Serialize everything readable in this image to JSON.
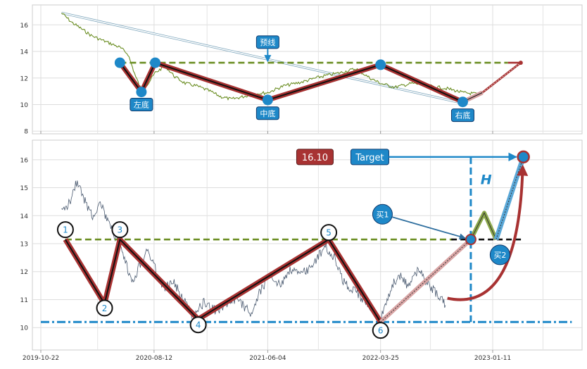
{
  "chart_data": [
    {
      "type": "line",
      "panel": "top",
      "ylim": [
        7.8,
        17.5
      ],
      "yticks": [
        8,
        10,
        12,
        14,
        16
      ],
      "grid": true,
      "price_path": [
        [
          "2019-12-15",
          16.9
        ],
        [
          "2020-01-10",
          16.2
        ],
        [
          "2020-02-05",
          15.7
        ],
        [
          "2020-03-01",
          15.2
        ],
        [
          "2020-03-25",
          14.9
        ],
        [
          "2020-04-20",
          14.6
        ],
        [
          "2020-05-15",
          14.3
        ],
        [
          "2020-06-05",
          13.8
        ],
        [
          "2020-06-25",
          12.1
        ],
        [
          "2020-07-10",
          11.1
        ],
        [
          "2020-07-28",
          11.6
        ],
        [
          "2020-08-15",
          12.4
        ],
        [
          "2020-09-10",
          12.9
        ],
        [
          "2020-10-05",
          12.1
        ],
        [
          "2020-11-01",
          11.6
        ],
        [
          "2020-12-01",
          11.4
        ],
        [
          "2021-01-05",
          11.0
        ],
        [
          "2021-02-01",
          10.6
        ],
        [
          "2021-03-01",
          10.4
        ],
        [
          "2021-04-01",
          10.6
        ],
        [
          "2021-05-01",
          10.8
        ],
        [
          "2021-06-04",
          10.9
        ],
        [
          "2021-07-15",
          11.4
        ],
        [
          "2021-09-01",
          11.7
        ],
        [
          "2021-10-20",
          12.1
        ],
        [
          "2021-12-10",
          12.4
        ],
        [
          "2022-01-20",
          12.7
        ],
        [
          "2022-02-25",
          12.0
        ],
        [
          "2022-03-25",
          11.6
        ],
        [
          "2022-05-01",
          11.3
        ],
        [
          "2022-06-15",
          11.6
        ],
        [
          "2022-08-01",
          11.4
        ],
        [
          "2022-09-15",
          11.2
        ],
        [
          "2022-10-25",
          10.9
        ],
        [
          "2022-12-01",
          10.8
        ]
      ],
      "pattern_lines": [
        {
          "name": "neckline",
          "style": "dashed",
          "color": "#6b8e23",
          "points": [
            [
              "2020-05-15",
              13.15
            ],
            [
              "2023-02-20",
              13.15
            ]
          ]
        },
        {
          "name": "neckline-ext",
          "style": "solid",
          "color": "#a83232",
          "points": [
            [
              "2023-02-20",
              13.15
            ],
            [
              "2023-03-25",
              13.15
            ]
          ]
        },
        {
          "name": "trend",
          "style": "outline",
          "color": "#a7c4d4",
          "points": [
            [
              "2019-12-15",
              16.9
            ],
            [
              "2022-10-25",
              10.1
            ]
          ]
        },
        {
          "name": "w-pattern",
          "style": "solid",
          "color": "#a83232",
          "points": [
            [
              "2020-05-15",
              13.15
            ],
            [
              "2020-07-10",
              10.95
            ],
            [
              "2020-08-15",
              13.15
            ],
            [
              "2021-06-04",
              10.35
            ],
            [
              "2022-03-25",
              13.0
            ],
            [
              "2022-10-25",
              10.2
            ]
          ]
        },
        {
          "name": "exit",
          "style": "solid",
          "color": "#d4a0a0",
          "points": [
            [
              "2022-10-25",
              10.2
            ],
            [
              "2022-12-15",
              10.9
            ]
          ]
        },
        {
          "name": "target",
          "style": "solid",
          "color": "#a83232",
          "points": [
            [
              "2022-12-15",
              10.9
            ],
            [
              "2023-03-25",
              13.15
            ]
          ]
        }
      ],
      "markers": [
        [
          "2020-05-15",
          13.15
        ],
        [
          "2020-07-10",
          10.95
        ],
        [
          "2020-08-15",
          13.15
        ],
        [
          "2021-06-04",
          10.35
        ],
        [
          "2022-03-25",
          13.0
        ],
        [
          "2022-10-25",
          10.2
        ]
      ],
      "annotations": [
        {
          "text": "预线",
          "x": "2021-06-04",
          "y": 14.7
        },
        {
          "text": "左底",
          "x": "2020-07-10",
          "y": 10.0
        },
        {
          "text": "中底",
          "x": "2021-06-04",
          "y": 9.35
        },
        {
          "text": "右底",
          "x": "2022-10-25",
          "y": 9.2
        }
      ]
    },
    {
      "type": "line",
      "panel": "bottom",
      "ylim": [
        9.2,
        16.7
      ],
      "yticks": [
        10,
        11,
        12,
        13,
        14,
        15,
        16
      ],
      "xticks": [
        "2019-10-22",
        "2020-08-12",
        "2021-06-04",
        "2022-03-25",
        "2023-01-11"
      ],
      "grid": true,
      "price_path": [
        [
          "2019-12-15",
          14.1
        ],
        [
          "2020-01-05",
          14.5
        ],
        [
          "2020-01-25",
          15.3
        ],
        [
          "2020-02-10",
          14.6
        ],
        [
          "2020-03-05",
          14.0
        ],
        [
          "2020-03-25",
          14.5
        ],
        [
          "2020-04-15",
          13.7
        ],
        [
          "2020-05-05",
          13.2
        ],
        [
          "2020-05-25",
          12.5
        ],
        [
          "2020-06-15",
          11.6
        ],
        [
          "2020-07-05",
          12.2
        ],
        [
          "2020-07-25",
          12.8
        ],
        [
          "2020-08-15",
          12.1
        ],
        [
          "2020-09-05",
          11.4
        ],
        [
          "2020-10-01",
          11.6
        ],
        [
          "2020-10-25",
          11.1
        ],
        [
          "2020-11-20",
          10.4
        ],
        [
          "2020-12-20",
          10.9
        ],
        [
          "2021-01-20",
          10.6
        ],
        [
          "2021-02-20",
          10.9
        ],
        [
          "2021-03-20",
          11.0
        ],
        [
          "2021-04-20",
          10.5
        ],
        [
          "2021-05-15",
          11.3
        ],
        [
          "2021-06-10",
          11.9
        ],
        [
          "2021-07-05",
          11.5
        ],
        [
          "2021-08-01",
          12.1
        ],
        [
          "2021-09-01",
          11.9
        ],
        [
          "2021-10-01",
          12.3
        ],
        [
          "2021-11-01",
          12.9
        ],
        [
          "2021-11-25",
          12.5
        ],
        [
          "2021-12-20",
          11.6
        ],
        [
          "2022-01-15",
          11.3
        ],
        [
          "2022-02-10",
          11.0
        ],
        [
          "2022-03-05",
          10.6
        ],
        [
          "2022-03-25",
          10.3
        ],
        [
          "2022-04-15",
          11.2
        ],
        [
          "2022-05-10",
          11.9
        ],
        [
          "2022-06-05",
          11.5
        ],
        [
          "2022-07-01",
          12.1
        ],
        [
          "2022-07-25",
          11.6
        ],
        [
          "2022-08-20",
          11.2
        ],
        [
          "2022-09-10",
          10.8
        ]
      ],
      "pattern_lines": [
        {
          "name": "neckline",
          "style": "dashed",
          "color": "#6b8e23",
          "points": [
            [
              "2019-12-25",
              13.15
            ],
            [
              "2022-10-01",
              13.15
            ]
          ]
        },
        {
          "name": "neckline-ext",
          "style": "dashed",
          "color": "#000000",
          "points": [
            [
              "2022-09-25",
              13.15
            ],
            [
              "2023-04-01",
              13.15
            ]
          ]
        },
        {
          "name": "support",
          "style": "dashdot",
          "color": "#1e88c8",
          "points": [
            [
              "2019-10-22",
              10.2
            ],
            [
              "2023-08-05",
              10.2
            ]
          ]
        },
        {
          "name": "w-pattern",
          "style": "solid",
          "color": "#a83232",
          "points": [
            [
              "2019-12-25",
              13.15
            ],
            [
              "2020-04-05",
              10.85
            ],
            [
              "2020-05-15",
              13.15
            ],
            [
              "2020-12-05",
              10.3
            ],
            [
              "2021-11-10",
              13.15
            ],
            [
              "2022-03-25",
              10.2
            ]
          ]
        },
        {
          "name": "exit",
          "style": "solid",
          "color": "#d4a0a0",
          "points": [
            [
              "2022-03-25",
              10.2
            ],
            [
              "2022-11-15",
              13.15
            ]
          ]
        },
        {
          "name": "retest",
          "style": "solid",
          "color": "#6b8e23",
          "points": [
            [
              "2022-11-15",
              13.15
            ],
            [
              "2022-12-20",
              14.1
            ],
            [
              "2023-01-20",
              13.15
            ]
          ]
        },
        {
          "name": "target",
          "style": "solid",
          "color": "#5aa8d8",
          "points": [
            [
              "2023-01-20",
              13.15
            ],
            [
              "2023-04-01",
              16.1
            ]
          ]
        }
      ],
      "markers": [
        {
          "label": "1",
          "x": "2019-12-25",
          "y": 13.5
        },
        {
          "label": "2",
          "x": "2020-04-05",
          "y": 10.7
        },
        {
          "label": "3",
          "x": "2020-05-15",
          "y": 13.5
        },
        {
          "label": "4",
          "x": "2020-12-05",
          "y": 10.1
        },
        {
          "label": "5",
          "x": "2021-11-10",
          "y": 13.4
        },
        {
          "label": "6",
          "x": "2022-03-25",
          "y": 9.9
        }
      ],
      "annotations": [
        {
          "text": "16.10",
          "x": "2021-10-05",
          "y": 16.1,
          "bg": "#a83232"
        },
        {
          "text": "Target",
          "x": "2022-02-25",
          "y": 16.1,
          "bg": "#1e88c8"
        },
        {
          "text": "H",
          "x": "2022-12-25",
          "y": 15.3
        },
        {
          "text": "买1",
          "x": "2022-03-30",
          "y": 14.05
        },
        {
          "text": "买2",
          "x": "2023-01-30",
          "y": 12.6
        }
      ]
    }
  ]
}
